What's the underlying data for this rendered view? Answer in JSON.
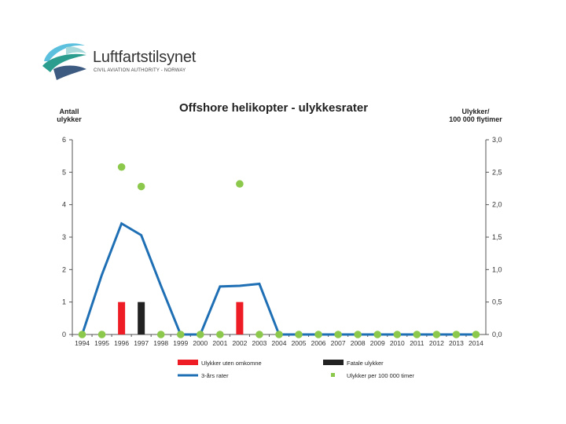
{
  "logo": {
    "name": "Luftfartstilsynet",
    "subtitle": "CIVIL AVIATION AUTHORITY - NORWAY"
  },
  "colors": {
    "red": "#ee1c25",
    "black": "#222222",
    "blue": "#1f6fb5",
    "green": "#8cc84b",
    "axis": "#555555",
    "grid": "#bbbbbb"
  },
  "chart_data": {
    "type": "bar",
    "title": "Offshore helikopter - ulykkesrater",
    "y_left_label": [
      "Antall",
      "ulykker"
    ],
    "y_right_label": [
      "Ulykker/",
      "100 000 flytimer"
    ],
    "ylim_left": [
      0,
      6
    ],
    "ylim_right": [
      0,
      3
    ],
    "y_left_ticks": [
      "0",
      "1",
      "2",
      "3",
      "4",
      "5",
      "6"
    ],
    "y_right_ticks": [
      "0,0",
      "0,5",
      "1,0",
      "1,5",
      "2,0",
      "2,5",
      "3,0"
    ],
    "categories": [
      "1994",
      "1995",
      "1996",
      "1997",
      "1998",
      "1999",
      "2000",
      "2001",
      "2002",
      "2003",
      "2004",
      "2005",
      "2006",
      "2007",
      "2008",
      "2009",
      "2010",
      "2011",
      "2012",
      "2013",
      "2014"
    ],
    "grid": false,
    "legend_position": "bottom",
    "series": [
      {
        "name": "Ulykker uten omkomne",
        "type": "bar",
        "axis": "left",
        "color": "#ee1c25",
        "values": [
          0,
          0,
          1,
          0,
          0,
          0,
          0,
          0,
          1,
          0,
          0,
          0,
          0,
          0,
          0,
          0,
          0,
          0,
          0,
          0,
          0
        ]
      },
      {
        "name": "Fatale ulykker",
        "type": "bar",
        "axis": "left",
        "color": "#222222",
        "values": [
          0,
          0,
          0,
          1,
          0,
          0,
          0,
          0,
          0,
          0,
          0,
          0,
          0,
          0,
          0,
          0,
          0,
          0,
          0,
          0,
          0
        ]
      },
      {
        "name": "3-års rater",
        "type": "line",
        "axis": "right",
        "color": "#1f6fb5",
        "values": [
          0,
          0.92,
          1.71,
          1.53,
          0.75,
          0,
          0,
          0.74,
          0.75,
          0.78,
          0,
          0,
          0,
          0,
          0,
          0,
          0,
          0,
          0,
          0,
          0
        ]
      },
      {
        "name": "Ulykker per 100 000 timer",
        "type": "scatter",
        "axis": "right",
        "color": "#8cc84b",
        "values": [
          0,
          0,
          2.58,
          2.28,
          0,
          0,
          0,
          0,
          2.32,
          0,
          0,
          0,
          0,
          0,
          0,
          0,
          0,
          0,
          0,
          0,
          0
        ]
      }
    ]
  }
}
